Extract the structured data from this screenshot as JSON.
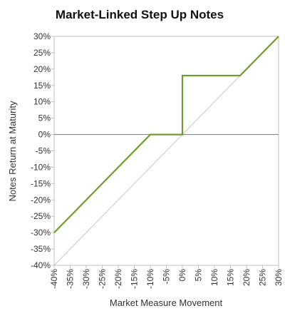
{
  "chart_data": {
    "type": "line",
    "title": "Market-Linked Step Up Notes",
    "xlabel": "Market Measure Movement",
    "ylabel": "Notes Return at Maturity",
    "xlim": [
      -40,
      30
    ],
    "ylim": [
      -40,
      30
    ],
    "x_ticks": [
      -40,
      -35,
      -30,
      -25,
      -20,
      -15,
      -10,
      -5,
      0,
      5,
      10,
      15,
      20,
      25,
      30
    ],
    "y_ticks": [
      -40,
      -35,
      -30,
      -25,
      -20,
      -15,
      -10,
      -5,
      0,
      5,
      10,
      15,
      20,
      25,
      30
    ],
    "x_tick_labels": [
      "-40%",
      "-35%",
      "-30%",
      "-25%",
      "-20%",
      "-15%",
      "-10%",
      "-5%",
      "0%",
      "5%",
      "10%",
      "15%",
      "20%",
      "25%",
      "30%"
    ],
    "y_tick_labels": [
      "-40%",
      "-35%",
      "-30%",
      "-25%",
      "-20%",
      "-15%",
      "-10%",
      "-5%",
      "0%",
      "5%",
      "10%",
      "15%",
      "20%",
      "25%",
      "30%"
    ],
    "grid": false,
    "legend": "none",
    "series": [
      {
        "color": "#6e9c2f",
        "x": [
          -40,
          -10,
          0,
          0,
          18,
          30
        ],
        "y": [
          -30,
          0,
          0,
          18,
          18,
          30
        ]
      },
      {
        "color": "#c8c8c8",
        "x": [
          -40,
          30
        ],
        "y": [
          -40,
          30
        ]
      }
    ],
    "reference_lines": [
      {
        "axis": "y",
        "value": 0,
        "color": "#888888"
      }
    ],
    "colors": {
      "frame": "#bfbfbf",
      "text": "#333333",
      "title": "#111111"
    }
  }
}
